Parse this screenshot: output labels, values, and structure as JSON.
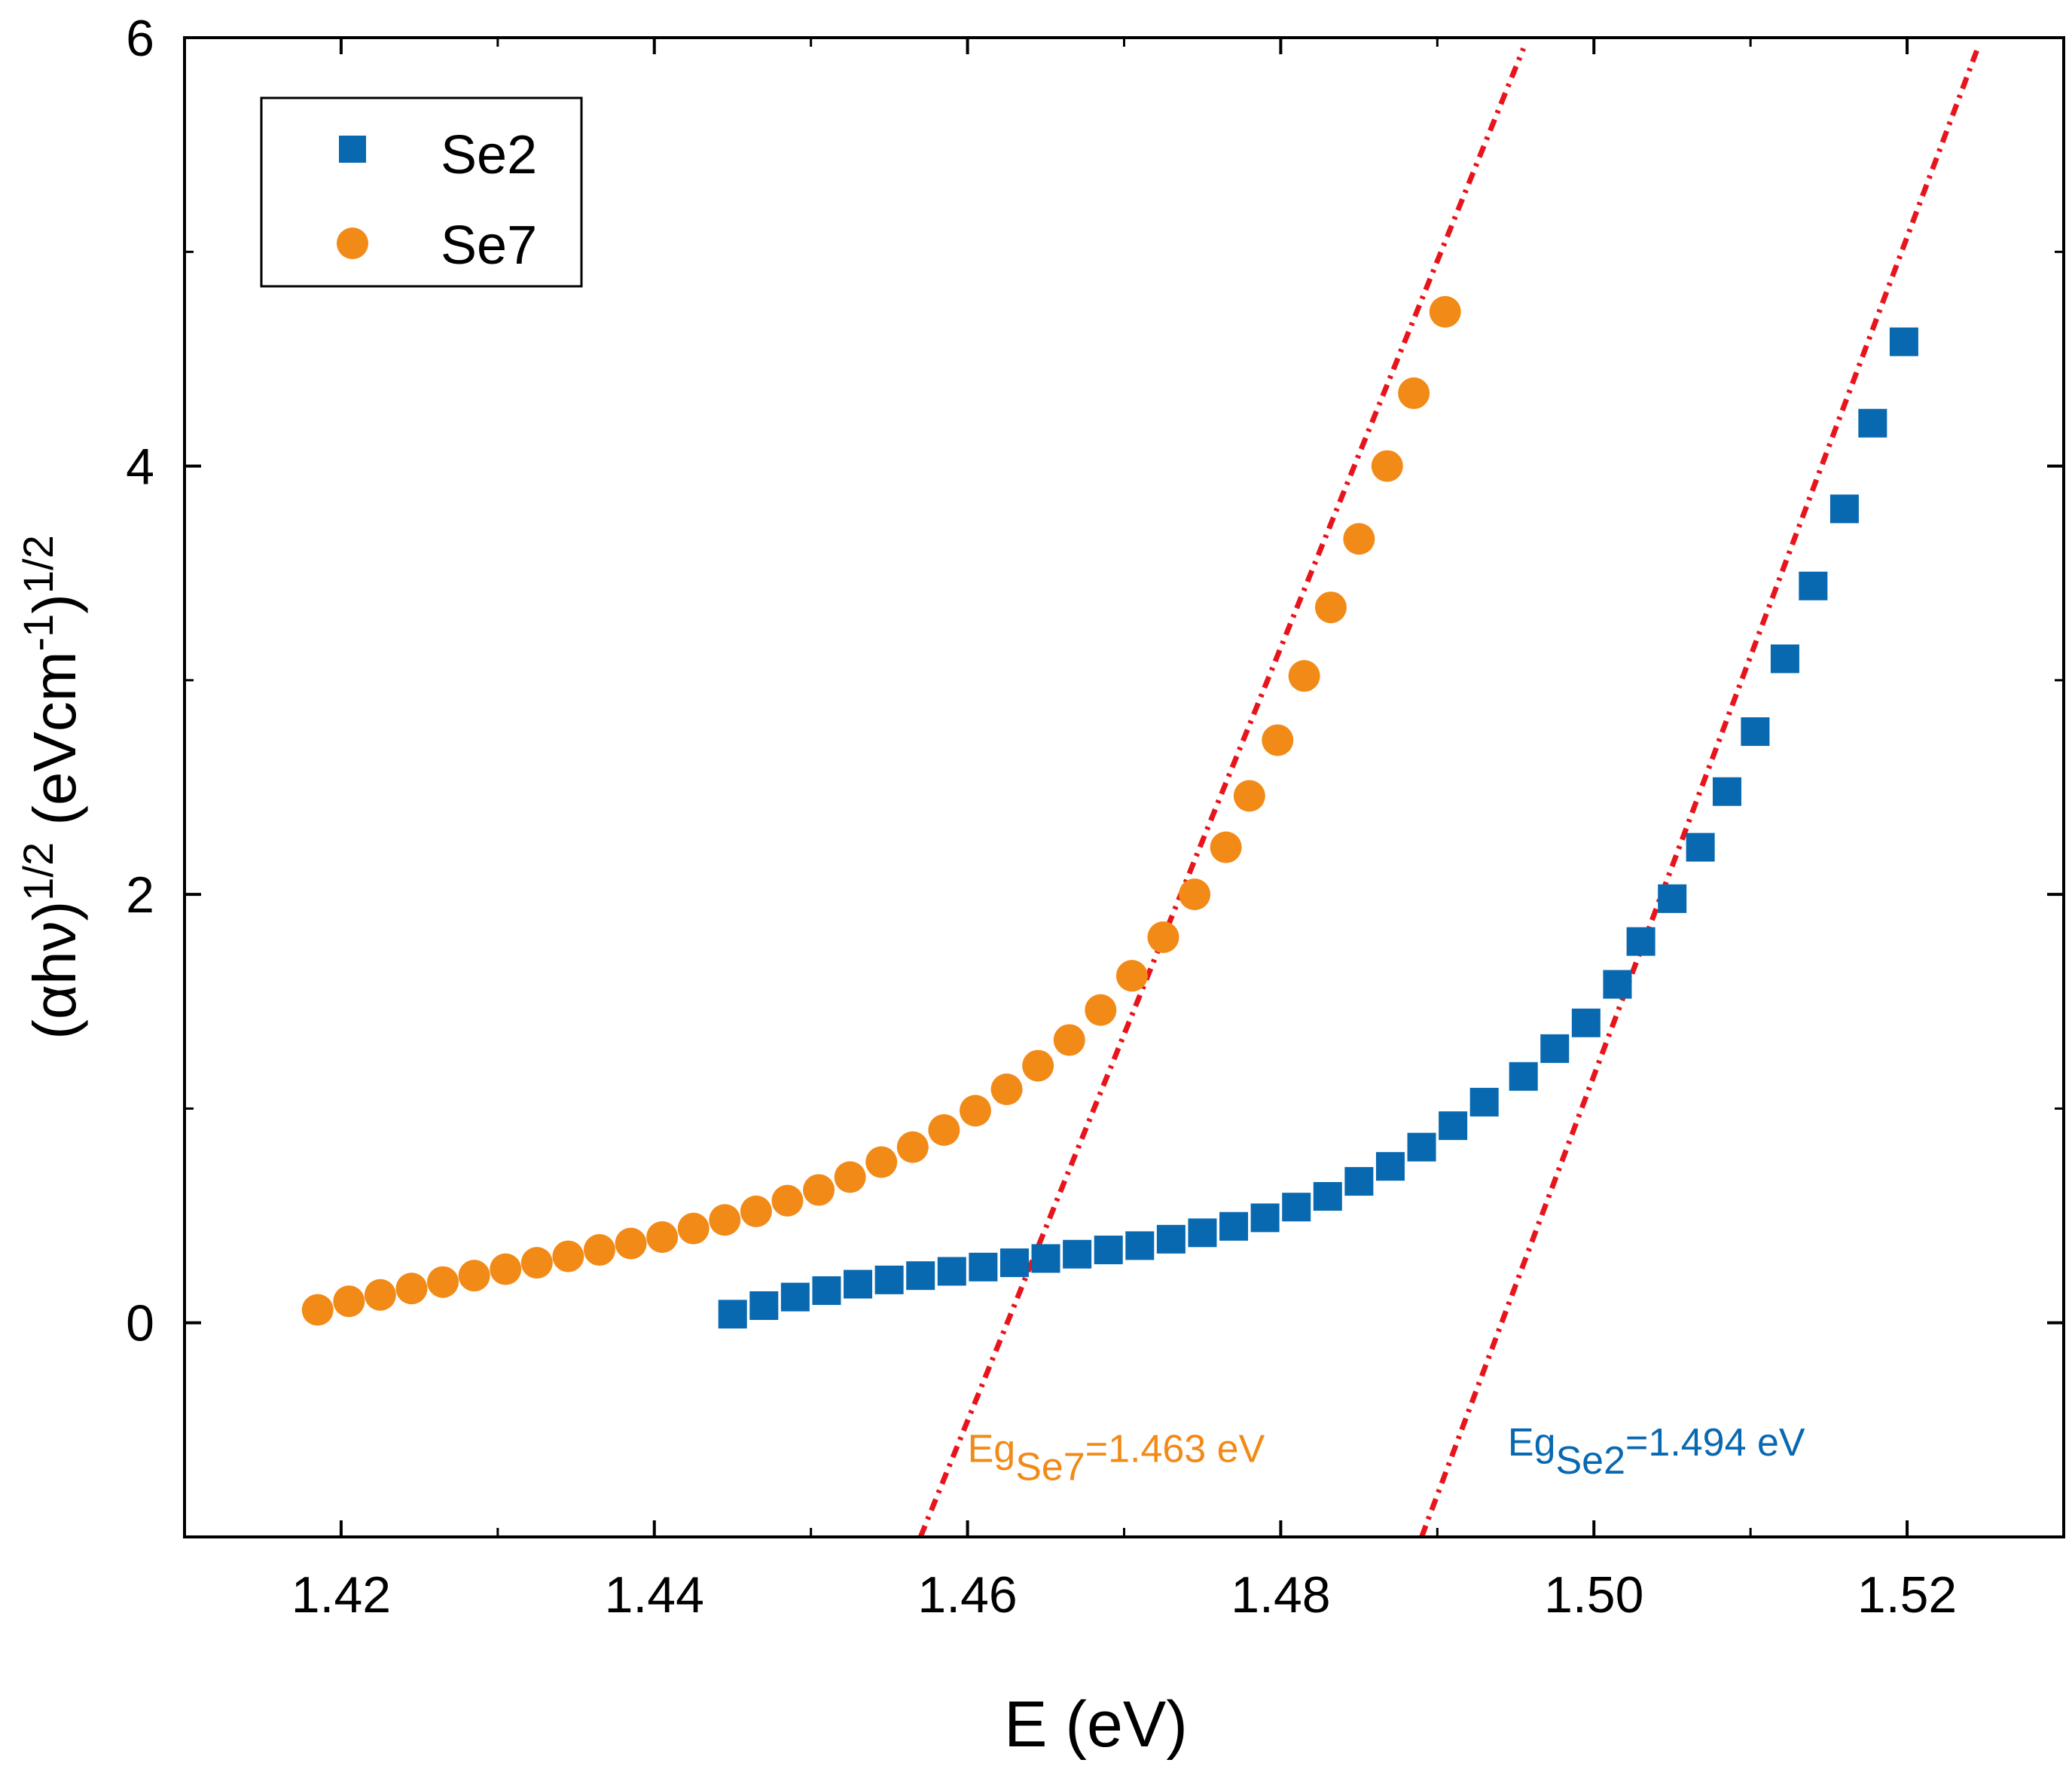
{
  "chart_data": {
    "type": "scatter",
    "xlabel": "E (eV)",
    "ylabel": {
      "p1": "(αhν)",
      "p1_sup": "1/2",
      "p2": " (eVcm",
      "p2_sup": "-1",
      "p3": ")",
      "p3_sup": "1/2"
    },
    "xlim": [
      1.41,
      1.53
    ],
    "ylim": [
      -1.0,
      6.0
    ],
    "xticks": [
      1.42,
      1.44,
      1.46,
      1.48,
      1.5,
      1.52
    ],
    "xtick_labels": [
      "1.42",
      "1.44",
      "1.46",
      "1.48",
      "1.50",
      "1.52"
    ],
    "yticks": [
      0,
      2,
      4,
      6
    ],
    "ytick_labels": [
      "0",
      "2",
      "4",
      "6"
    ],
    "grid": false,
    "legend_position": "top-left",
    "series": [
      {
        "name": "Se2",
        "marker": "square",
        "color": "#0868b0",
        "x": [
          1.445,
          1.447,
          1.449,
          1.451,
          1.453,
          1.455,
          1.457,
          1.459,
          1.461,
          1.463,
          1.465,
          1.467,
          1.469,
          1.471,
          1.473,
          1.475,
          1.477,
          1.479,
          1.481,
          1.483,
          1.485,
          1.487,
          1.489,
          1.491,
          1.493,
          1.4955,
          1.4975,
          1.4995,
          1.5015,
          1.503,
          1.505,
          1.5068,
          1.5085,
          1.5103,
          1.5122,
          1.514,
          1.516,
          1.5178,
          1.5198
        ],
        "y": [
          0.04,
          0.08,
          0.12,
          0.15,
          0.18,
          0.2,
          0.22,
          0.24,
          0.26,
          0.28,
          0.3,
          0.32,
          0.34,
          0.36,
          0.39,
          0.42,
          0.45,
          0.49,
          0.54,
          0.59,
          0.66,
          0.73,
          0.82,
          0.92,
          1.03,
          1.15,
          1.28,
          1.4,
          1.58,
          1.78,
          1.98,
          2.22,
          2.48,
          2.76,
          3.1,
          3.44,
          3.8,
          4.2,
          4.58
        ]
      },
      {
        "name": "Se7",
        "marker": "circle",
        "color": "#f28a17",
        "x": [
          1.4185,
          1.4205,
          1.4225,
          1.4245,
          1.4265,
          1.4285,
          1.4305,
          1.4325,
          1.4345,
          1.4365,
          1.4385,
          1.4405,
          1.4425,
          1.4445,
          1.4465,
          1.4485,
          1.4505,
          1.4525,
          1.4545,
          1.4565,
          1.4585,
          1.4605,
          1.4625,
          1.4645,
          1.4665,
          1.4685,
          1.4705,
          1.4725,
          1.4745,
          1.4765,
          1.478,
          1.4798,
          1.4815,
          1.4832,
          1.485,
          1.4868,
          1.4885,
          1.4905
        ],
        "y": [
          0.06,
          0.1,
          0.13,
          0.16,
          0.19,
          0.22,
          0.25,
          0.28,
          0.31,
          0.34,
          0.37,
          0.4,
          0.44,
          0.48,
          0.52,
          0.57,
          0.62,
          0.68,
          0.75,
          0.82,
          0.9,
          0.99,
          1.09,
          1.2,
          1.32,
          1.46,
          1.62,
          1.8,
          2.0,
          2.22,
          2.46,
          2.72,
          3.02,
          3.34,
          3.66,
          4.0,
          4.34,
          4.72
        ]
      }
    ],
    "fit_lines": [
      {
        "series": "Se7",
        "color": "#e8141b",
        "x0": 1.457,
        "y0": -1.0,
        "x1": 1.4955,
        "y1": 5.95
      },
      {
        "series": "Se2",
        "color": "#e8141b",
        "x0": 1.489,
        "y0": -1.0,
        "x1": 1.5245,
        "y1": 5.95
      }
    ],
    "annotations": [
      {
        "series": "Se7",
        "base": "Eg",
        "sub": "Se7",
        "rest": "=1.463 eV",
        "color": "#f28a17",
        "x": 1.46,
        "y": -0.65
      },
      {
        "series": "Se2",
        "base": "Eg",
        "sub": "Se2",
        "rest": "=1.494 eV",
        "color": "#0868b0",
        "x": 1.4945,
        "y": -0.62
      }
    ]
  }
}
